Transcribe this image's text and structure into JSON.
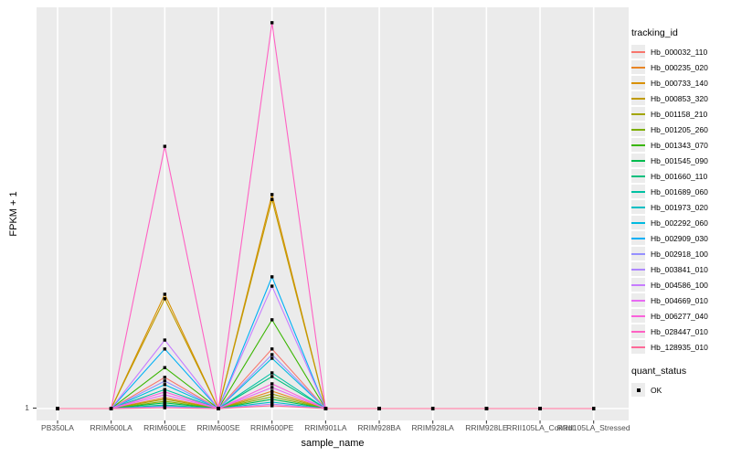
{
  "style": {
    "background": "#ffffff",
    "panel_background": "#ebebeb",
    "gridline_color": "#ffffff",
    "tick_color": "#333333",
    "axis_text_color": "#4d4d4d",
    "legend_key_background": "#ececec",
    "point_color": "#000000"
  },
  "axes": {
    "y_tick_labels": [
      "1"
    ]
  },
  "legend": {
    "tracking_title": "tracking_id",
    "quant_title": "quant_status",
    "quant_items": [
      {
        "label": "OK",
        "shape": "filled-square",
        "color": "#000000"
      }
    ]
  },
  "chart_data": {
    "type": "line",
    "title": "",
    "xlabel": "sample_name",
    "ylabel": "FPKM + 1",
    "legend_title": "tracking_id",
    "legend_position": "right",
    "grid": "vertical gridline per category, horizontal gridline at y=1",
    "point_marker": {
      "shape": "square",
      "color": "#000000",
      "legend_label": "OK"
    },
    "y_tick_labels": [
      "1"
    ],
    "ylim": [
      1,
      100
    ],
    "categories": [
      "PB350LA",
      "RRIM600LA",
      "RRIM600LE",
      "RRIM600SE",
      "RRIM600PE",
      "RRIM901LA",
      "RRIM928BA",
      "RRIM928LA",
      "RRIM928LE",
      "RRII105LA_Control",
      "RRII105LA_Stressed"
    ],
    "series": [
      {
        "name": "Hb_000032_110",
        "color": "#F8766D",
        "values": [
          1,
          1,
          8.7,
          1,
          15.7,
          1,
          1,
          1,
          1,
          1,
          1
        ]
      },
      {
        "name": "Hb_000235_020",
        "color": "#E88526",
        "values": [
          1,
          1,
          3.7,
          1,
          5.3,
          1,
          1,
          1,
          1,
          1,
          1
        ]
      },
      {
        "name": "Hb_000733_140",
        "color": "#D89000",
        "values": [
          1,
          1,
          29.2,
          1,
          53.8,
          1,
          1,
          1,
          1,
          1,
          1
        ]
      },
      {
        "name": "Hb_000853_320",
        "color": "#C09B00",
        "values": [
          1,
          1,
          28.1,
          1,
          52.6,
          1,
          1,
          1,
          1,
          1,
          1
        ]
      },
      {
        "name": "Hb_001158_210",
        "color": "#A3A500",
        "values": [
          1,
          1,
          3.3,
          1,
          4.6,
          1,
          1,
          1,
          1,
          1,
          1
        ]
      },
      {
        "name": "Hb_001205_260",
        "color": "#7CAE00",
        "values": [
          1,
          1,
          2.8,
          1,
          3.9,
          1,
          1,
          1,
          1,
          1,
          1
        ]
      },
      {
        "name": "Hb_001343_070",
        "color": "#39B600",
        "values": [
          1,
          1,
          11.1,
          1,
          22.9,
          1,
          1,
          1,
          1,
          1,
          1
        ]
      },
      {
        "name": "Hb_001545_090",
        "color": "#00BB4E",
        "values": [
          1,
          1,
          2.4,
          1,
          3.3,
          1,
          1,
          1,
          1,
          1,
          1
        ]
      },
      {
        "name": "Hb_001660_110",
        "color": "#00BF7D",
        "values": [
          1,
          1,
          1.9,
          1,
          8.9,
          1,
          1,
          1,
          1,
          1,
          1
        ]
      },
      {
        "name": "Hb_001689_060",
        "color": "#00C1A3",
        "values": [
          1,
          1,
          5.7,
          1,
          9.8,
          1,
          1,
          1,
          1,
          1,
          1
        ]
      },
      {
        "name": "Hb_001973_020",
        "color": "#00BFC4",
        "values": [
          1,
          1,
          1.7,
          1,
          2.6,
          1,
          1,
          1,
          1,
          1,
          1
        ]
      },
      {
        "name": "Hb_002292_060",
        "color": "#00BAE0",
        "values": [
          1,
          1,
          6.9,
          1,
          13.4,
          1,
          1,
          1,
          1,
          1,
          1
        ]
      },
      {
        "name": "Hb_002909_030",
        "color": "#00B0F6",
        "values": [
          1,
          1,
          15.7,
          1,
          33.5,
          1,
          1,
          1,
          1,
          1,
          1
        ]
      },
      {
        "name": "Hb_002918_100",
        "color": "#9590FF",
        "values": [
          1,
          1,
          7.8,
          1,
          14.3,
          1,
          1,
          1,
          1,
          1,
          1
        ]
      },
      {
        "name": "Hb_003841_010",
        "color": "#AE87FF",
        "values": [
          1,
          1,
          1.5,
          1,
          2.1,
          1,
          1,
          1,
          1,
          1,
          1
        ]
      },
      {
        "name": "Hb_004586_100",
        "color": "#C77CFF",
        "values": [
          1,
          1,
          17.9,
          1,
          31.2,
          1,
          1,
          1,
          1,
          1,
          1
        ]
      },
      {
        "name": "Hb_004669_010",
        "color": "#E76BF3",
        "values": [
          1,
          1,
          4.4,
          1,
          6.2,
          1,
          1,
          1,
          1,
          1,
          1
        ]
      },
      {
        "name": "Hb_006277_040",
        "color": "#FA62DB",
        "values": [
          1,
          1,
          5.1,
          1,
          7.1,
          1,
          1,
          1,
          1,
          1,
          1
        ]
      },
      {
        "name": "Hb_028447_010",
        "color": "#FF61C3",
        "values": [
          1,
          1,
          65.7,
          1,
          96.2,
          1,
          1,
          1,
          1,
          1,
          1
        ]
      },
      {
        "name": "Hb_128935_010",
        "color": "#FF6A98",
        "values": [
          1,
          1,
          1.2,
          1,
          1.7,
          1,
          1,
          1,
          1,
          1,
          1
        ]
      }
    ]
  }
}
